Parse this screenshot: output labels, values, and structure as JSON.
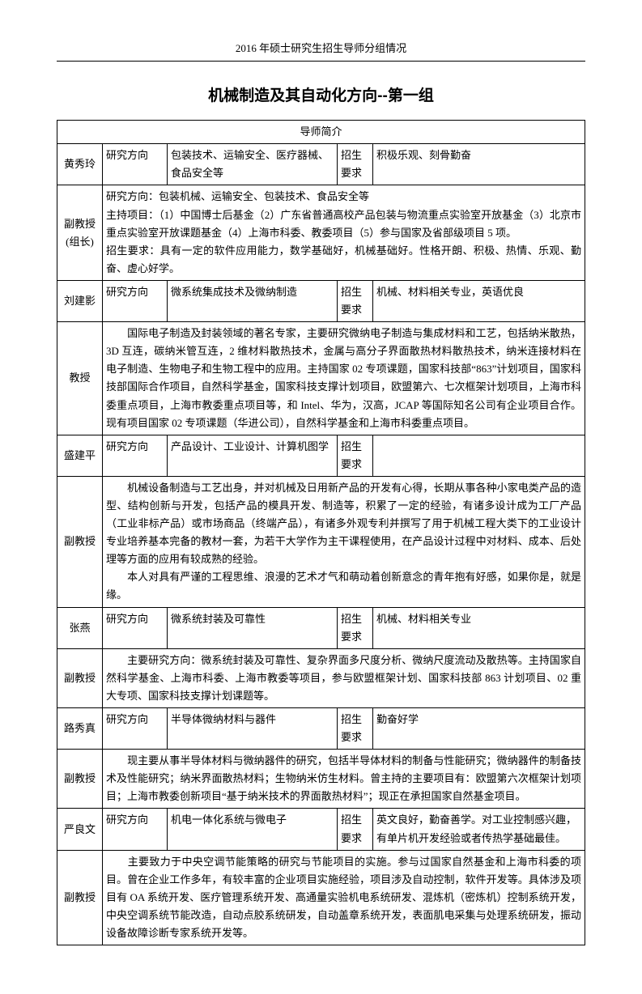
{
  "page_header": "2016 年硕士研究生招生导师分组情况",
  "title": "机械制造及其自动化方向--第一组",
  "table_header": "导师简介",
  "labels": {
    "direction": "研究方向",
    "requirement": "招生要求"
  },
  "rows": [
    {
      "name": "黄秀玲",
      "title": "副教授 (组长)",
      "direction": "包装技术、运输安全、医疗器械、食品安全等",
      "req_label": "招生要求",
      "requirement": "积极乐观、刻骨勤奋",
      "detail": [
        "研究方向：包装机械、运输安全、包装技术、食品安全等",
        "主持项目：（1）中国博士后基金（2）广东省普通高校产品包装与物流重点实验室开放基金（3）北京市重点实验室开放课题基金（4）上海市科委、教委项目（5）参与国家及省部级项目 5 项。",
        "招生要求：具有一定的软件应用能力，数学基础好，机械基础好。性格开朗、积极、热情、乐观、勤奋、虚心好学。"
      ]
    },
    {
      "name": "刘建影",
      "title": "教授",
      "direction": "微系统集成技术及微纳制造",
      "req_label": "招生要求",
      "requirement": "机械、材料相关专业，英语优良",
      "detail": [
        "　　国际电子制造及封装领域的著名专家，主要研究微纳电子制造与集成材料和工艺，包括纳米散热，3D 互连，碳纳米管互连，2 维材料散热技术，金属与高分子界面散热材料散热技术，纳米连接材料在电子制造、生物电子和生物工程中的应用。主持国家 02 专项课题，国家科技部“863”计划项目，国家科技部国际合作项目，自然科学基金，国家科技支撑计划项目，欧盟第六、七次框架计划项目，上海市科委重点项目，上海市教委重点项目等，和 Intel、华为，汉高，JCAP 等国际知名公司有企业项目合作。现有项目国家 02 专项课题（华进公司），自然科学基金和上海市科委重点项目。"
      ]
    },
    {
      "name": "盛建平",
      "title": "副教授",
      "direction": "产品设计、工业设计、计算机图学",
      "req_label": "招生要求",
      "requirement": "",
      "detail": [
        "　　机械设备制造与工艺出身，并对机械及日用新产品的开发有心得，长期从事各种小家电类产品的造型、结构创新与开发，包括产品的模具开发、制造等，积累了一定的经验，有诸多设计成为工厂产品（工业非标产品）或市场商品（终端产品），有诸多外观专利并撰写了用于机械工程大类下的工业设计专业培养基本完备的教材一套，为若干大学作为主干课程使用，在产品设计过程中对材料、成本、后处理等方面的应用有较成熟的经验。",
        "　　本人对具有严谨的工程思维、浪漫的艺术才气和萌动着创新意念的青年抱有好感，如果你是，就是缘。"
      ]
    },
    {
      "name": "张燕",
      "title": "副教授",
      "direction": "微系统封装及可靠性",
      "req_label": "招生要求",
      "requirement": "机械、材料相关专业",
      "detail": [
        "　　主要研究方向：微系统封装及可靠性、复杂界面多尺度分析、微纳尺度流动及散热等。主持国家自然科学基金、上海市科委、上海市教委等项目，参与欧盟框架计划、国家科技部 863 计划项目、02 重大专项、国家科技支撑计划课题等。"
      ]
    },
    {
      "name": "路秀真",
      "title": "副教授",
      "direction": "半导体微纳材料与器件",
      "req_label": "招生要求",
      "requirement": "勤奋好学",
      "detail": [
        "　　现主要从事半导体材料与微纳器件的研究，包括半导体材料的制备与性能研究；微纳器件的制备技术及性能研究；纳米界面散热材料；生物纳米仿生材料。曾主持的主要项目有：欧盟第六次框架计划项目；上海市教委创新项目“基于纳米技术的界面散热材料”；现正在承担国家自然基金项目。"
      ]
    },
    {
      "name": "严良文",
      "title": "副教授",
      "direction": "机电一体化系统与微电子",
      "req_label": "招生要求",
      "requirement": "英文良好，勤奋善学。对工业控制感兴趣，有单片机开发经验或者传热学基础最佳。",
      "detail": [
        "　　主要致力于中央空调节能策略的研究与节能项目的实施。参与过国家自然基金和上海市科委的项目。曾在企业工作多年，有较丰富的企业项目实施经验，项目涉及自动控制，软件开发等。具体涉及项目有 OA 系统开发、医疗管理系统开发、高通量实验机电系统研发、混炼机（密炼机）控制系统开发，中央空调系统节能改造，自动点胶系统研发，自动盖章系统开发，表面肌电采集与处理系统研发，振动设备故障诊断专家系统开发等。"
      ]
    }
  ]
}
